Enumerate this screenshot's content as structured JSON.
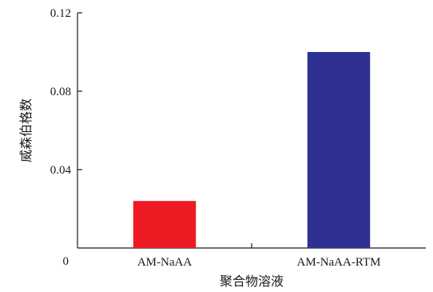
{
  "chart_data": {
    "type": "bar",
    "title": "",
    "xlabel": "聚合物溶液",
    "ylabel": "威森伯格数",
    "categories": [
      "AM-NaAA",
      "AM-NaAA-RTM"
    ],
    "values": [
      0.024,
      0.1
    ],
    "bar_colors": [
      "#ed1c24",
      "#2e3192"
    ],
    "ylim": [
      0,
      0.12
    ],
    "yticks": [
      {
        "value": 0,
        "label": "0"
      },
      {
        "value": 0.04,
        "label": "0.04"
      },
      {
        "value": 0.08,
        "label": "0.08"
      },
      {
        "value": 0.12,
        "label": "0.12"
      }
    ],
    "grid": false,
    "legend": "none"
  }
}
